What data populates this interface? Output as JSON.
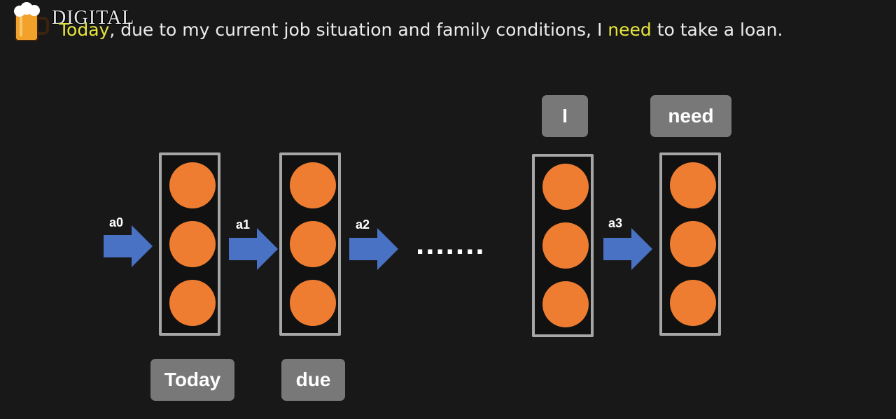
{
  "logo": {
    "word": "DIGITAL",
    "icon": "beer-mug-icon"
  },
  "sentence": {
    "part1": "Today",
    "part2": ", due to my current job situation and family conditions, I ",
    "part3": "need",
    "part4": " to take a loan.",
    "highlight_color": "#e6e43c"
  },
  "diagram": {
    "inputs": [
      "Today",
      "due"
    ],
    "outputs": [
      "I",
      "need"
    ],
    "activations": [
      "a0",
      "a1",
      "a2",
      "a3"
    ],
    "ellipsis": ".......",
    "node_color": "#ee7d31",
    "arrow_color": "#4a72c4",
    "box_color": "#a6a6a6",
    "tag_color": "#787878"
  }
}
